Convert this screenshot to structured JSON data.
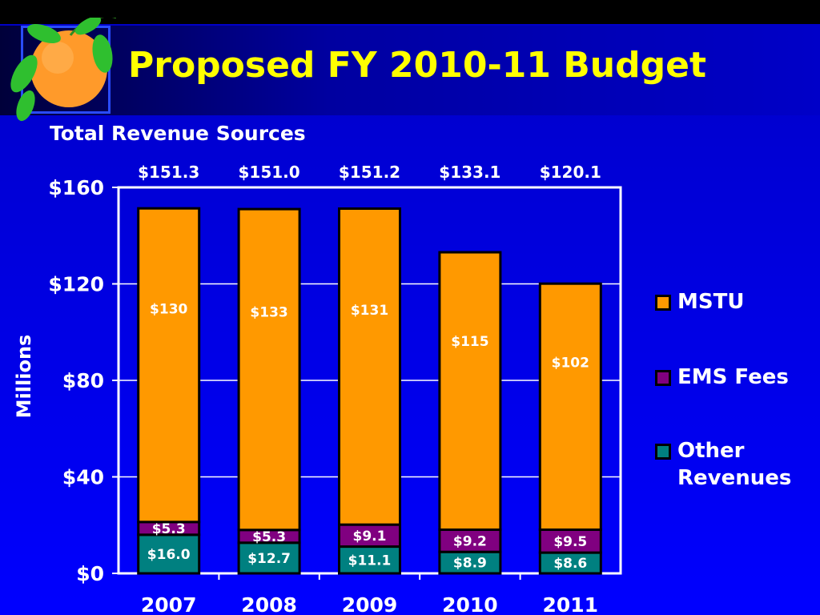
{
  "slide": {
    "title": "Proposed FY 2010-11 Budget",
    "subtitle": "Total Revenue Sources"
  },
  "legend": [
    {
      "label": "MSTU",
      "color": "#ff9900"
    },
    {
      "label": "EMS Fees",
      "color": "#800080"
    },
    {
      "label": "Other Revenues",
      "color": "#008080"
    }
  ],
  "chart_data": {
    "type": "bar",
    "stacked": true,
    "categories": [
      "2007",
      "2008",
      "2009",
      "2010",
      "2011"
    ],
    "series": [
      {
        "name": "Other Revenues",
        "color": "#008080",
        "values": [
          16.0,
          12.7,
          11.1,
          8.9,
          8.6
        ],
        "labels": [
          "$16.0",
          "$12.7",
          "$11.1",
          "$8.9",
          "$8.6"
        ]
      },
      {
        "name": "EMS Fees",
        "color": "#800080",
        "values": [
          5.3,
          5.3,
          9.1,
          9.2,
          9.5
        ],
        "labels": [
          "$5.3",
          "$5.3",
          "$9.1",
          "$9.2",
          "$9.5"
        ]
      },
      {
        "name": "MSTU",
        "color": "#ff9900",
        "values": [
          130,
          133,
          131,
          115,
          102
        ],
        "labels": [
          "$130",
          "$133",
          "$131",
          "$115",
          "$102"
        ]
      }
    ],
    "totals": [
      151.3,
      151.0,
      151.2,
      133.1,
      120.1
    ],
    "total_labels": [
      "$151.3",
      "$151.0",
      "$151.2",
      "$133.1",
      "$120.1"
    ],
    "ylabel": "Millions",
    "xlabel": "",
    "ylim": [
      0,
      160
    ],
    "yticks": [
      0,
      40,
      80,
      120,
      160
    ],
    "ytick_labels": [
      "$0",
      "$40",
      "$80",
      "$120",
      "$160"
    ],
    "grid": true,
    "legend_position": "right"
  }
}
